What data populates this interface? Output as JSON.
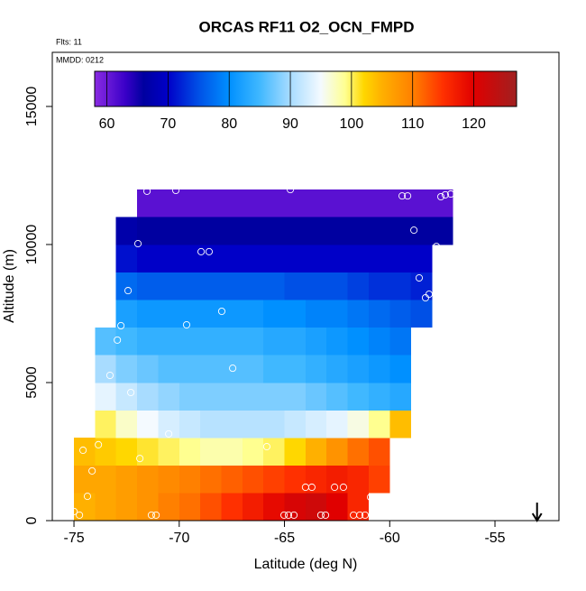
{
  "chart_data": {
    "type": "heatmap",
    "title": "ORCAS RF11 O2_OCN_FMPD",
    "annotations": [
      "Flts: 11",
      "MMDD: 0212"
    ],
    "x_label": "Latitude (deg N)",
    "y_label": "Altitude (m)",
    "xlim": [
      -76.03,
      -51.96
    ],
    "ylim": [
      0,
      16960
    ],
    "xticks": [
      -75,
      -70,
      -65,
      -60,
      -55
    ],
    "yticks": [
      0,
      5000,
      10000,
      15000
    ],
    "x_edges": [
      -76,
      -75,
      -74,
      -73,
      -72,
      -71,
      -70,
      -69,
      -68,
      -67,
      -66,
      -65,
      -64,
      -63,
      -62,
      -61,
      -60,
      -59,
      -58,
      -57,
      -56
    ],
    "y_edges": [
      0,
      1000,
      2000,
      3000,
      4000,
      5000,
      6000,
      7000,
      8000,
      9000,
      10000,
      11000,
      12000
    ],
    "z": [
      [
        null,
        105,
        106,
        107,
        108,
        110,
        111,
        113,
        115,
        117,
        119,
        121,
        122,
        120,
        116,
        null,
        null,
        null,
        null,
        null
      ],
      [
        null,
        106,
        106,
        107,
        108,
        109,
        110,
        111,
        112,
        113,
        114,
        115,
        116,
        117,
        116,
        114,
        null,
        null,
        null,
        null
      ],
      [
        null,
        104,
        103,
        102,
        101,
        100,
        99,
        98,
        98,
        99,
        100,
        102,
        105,
        108,
        111,
        113,
        null,
        null,
        null,
        null
      ],
      [
        null,
        null,
        100,
        97,
        95,
        93,
        92,
        91,
        91,
        91,
        91,
        92,
        93,
        94,
        96,
        99,
        104,
        null,
        null,
        null
      ],
      [
        null,
        null,
        94,
        92,
        90,
        89,
        88,
        88,
        88,
        88,
        88,
        88,
        87,
        86,
        85,
        84,
        83,
        null,
        null,
        null
      ],
      [
        null,
        null,
        90,
        88,
        87,
        86,
        86,
        86,
        86,
        86,
        85,
        85,
        84,
        83,
        82,
        81,
        80,
        null,
        null,
        null
      ],
      [
        null,
        null,
        86,
        85,
        84,
        84,
        84,
        84,
        84,
        84,
        83,
        83,
        82,
        81,
        80,
        79,
        78,
        null,
        null,
        null
      ],
      [
        null,
        null,
        null,
        82,
        81,
        81,
        81,
        81,
        81,
        81,
        80,
        80,
        79,
        79,
        78,
        77,
        76,
        75,
        null,
        null
      ],
      [
        null,
        null,
        null,
        77,
        76,
        76,
        76,
        76,
        76,
        76,
        76,
        75,
        75,
        75,
        74,
        73,
        73,
        72,
        null,
        null
      ],
      [
        null,
        null,
        null,
        71,
        70,
        70,
        70,
        70,
        70,
        70,
        70,
        70,
        70,
        70,
        70,
        70,
        70,
        70,
        null,
        null
      ],
      [
        null,
        null,
        null,
        67,
        66,
        66,
        66,
        66,
        66,
        66,
        66,
        66,
        66,
        66,
        66,
        66,
        66,
        66,
        66,
        null
      ],
      [
        null,
        null,
        null,
        null,
        61,
        61,
        61,
        61,
        61,
        61,
        61,
        61,
        61,
        61,
        61,
        61,
        61,
        61,
        61,
        null
      ]
    ],
    "colorbar": {
      "lim": [
        58,
        127
      ],
      "ticks": [
        60,
        70,
        80,
        90,
        100,
        110,
        120
      ]
    },
    "colormap": [
      [
        58,
        "#8a2be2"
      ],
      [
        63,
        "#3a00c8"
      ],
      [
        66,
        "#0000a0"
      ],
      [
        70,
        "#0000c8"
      ],
      [
        75,
        "#0050e6"
      ],
      [
        80,
        "#0090ff"
      ],
      [
        85,
        "#40b8ff"
      ],
      [
        90,
        "#a8dcff"
      ],
      [
        95,
        "#f4faff"
      ],
      [
        99,
        "#ffff90"
      ],
      [
        102,
        "#ffd700"
      ],
      [
        105,
        "#ffb000"
      ],
      [
        110,
        "#ff8000"
      ],
      [
        115,
        "#ff3000"
      ],
      [
        120,
        "#e00000"
      ],
      [
        127,
        "#a02020"
      ]
    ],
    "points": {
      "color": "#ffffff",
      "x": [
        -71.53,
        -70.16,
        -64.72,
        -59.41,
        -59.15,
        -57.57,
        -57.36,
        -57.1,
        -71.96,
        -68.96,
        -68.58,
        -58.85,
        -57.78,
        -58.6,
        -58.13,
        -58.3,
        -72.43,
        -73.29,
        -73.72,
        -72.77,
        -69.65,
        -67.98,
        -72.94,
        -73.29,
        -67.46,
        -72.3,
        -70.5,
        -73.84,
        -74.57,
        -71.87,
        -65.84,
        -74.14,
        -74.36,
        -75.0,
        -74.74,
        -71.32,
        -71.1,
        -65.02,
        -64.81,
        -64.55,
        -63.27,
        -63.05,
        -61.72,
        -61.42,
        -61.17,
        -64.0,
        -63.7,
        -62.62,
        -62.2,
        -60.91
      ],
      "y": [
        11930,
        11960,
        11990,
        11760,
        11760,
        11730,
        11800,
        11830,
        10030,
        9740,
        9740,
        10520,
        9930,
        8790,
        8200,
        8070,
        8330,
        8240,
        7350,
        7060,
        7090,
        7580,
        6540,
        5260,
        5520,
        4640,
        3140,
        2750,
        2550,
        2250,
        2680,
        1800,
        880,
        330,
        200,
        200,
        200,
        200,
        200,
        200,
        200,
        200,
        200,
        200,
        200,
        1210,
        1210,
        1210,
        1210,
        850
      ]
    },
    "marker_x": -53
  }
}
